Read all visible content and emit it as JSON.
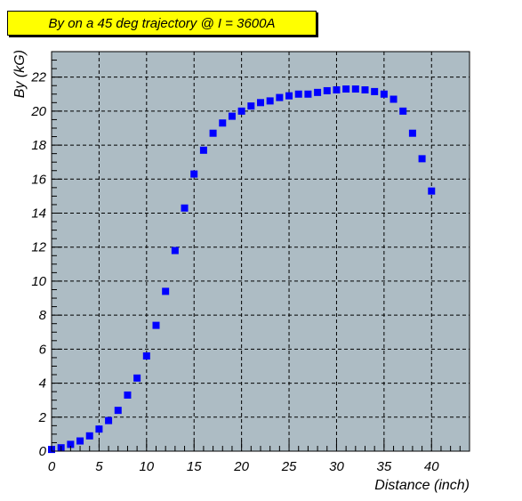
{
  "chart_data": {
    "type": "scatter",
    "title": "By on a 45 deg trajectory @ I = 3600A",
    "xlabel": "Distance (inch)",
    "ylabel": "By (kG)",
    "xlim": [
      0,
      44
    ],
    "ylim": [
      0,
      23.5
    ],
    "xticks": [
      0,
      5,
      10,
      15,
      20,
      25,
      30,
      35,
      40
    ],
    "yticks": [
      0,
      2,
      4,
      6,
      8,
      10,
      12,
      14,
      16,
      18,
      20,
      22
    ],
    "grid": true,
    "legend": "none",
    "colors": {
      "plot_bg": "#adbcc4",
      "marker": "#0000ff",
      "title_bg": "#ffff00"
    },
    "series": [
      {
        "x": [
          0,
          1,
          2,
          3,
          4,
          5,
          6,
          7,
          8,
          9,
          10,
          11,
          12,
          13,
          14,
          15,
          16,
          17,
          18,
          19,
          20,
          21,
          22,
          23,
          24,
          25,
          26,
          27,
          28,
          29,
          30,
          31,
          32,
          33,
          34,
          35,
          36,
          37,
          38,
          39,
          40
        ],
        "y": [
          0.1,
          0.2,
          0.4,
          0.6,
          0.9,
          1.3,
          1.8,
          2.4,
          3.3,
          4.3,
          5.6,
          7.4,
          9.4,
          11.8,
          14.3,
          16.3,
          17.7,
          18.7,
          19.3,
          19.7,
          20.0,
          20.3,
          20.5,
          20.6,
          20.8,
          20.9,
          21.0,
          21.0,
          21.1,
          21.2,
          21.25,
          21.3,
          21.3,
          21.25,
          21.15,
          21.0,
          20.7,
          20.0,
          18.7,
          17.2,
          15.3
        ]
      }
    ]
  }
}
